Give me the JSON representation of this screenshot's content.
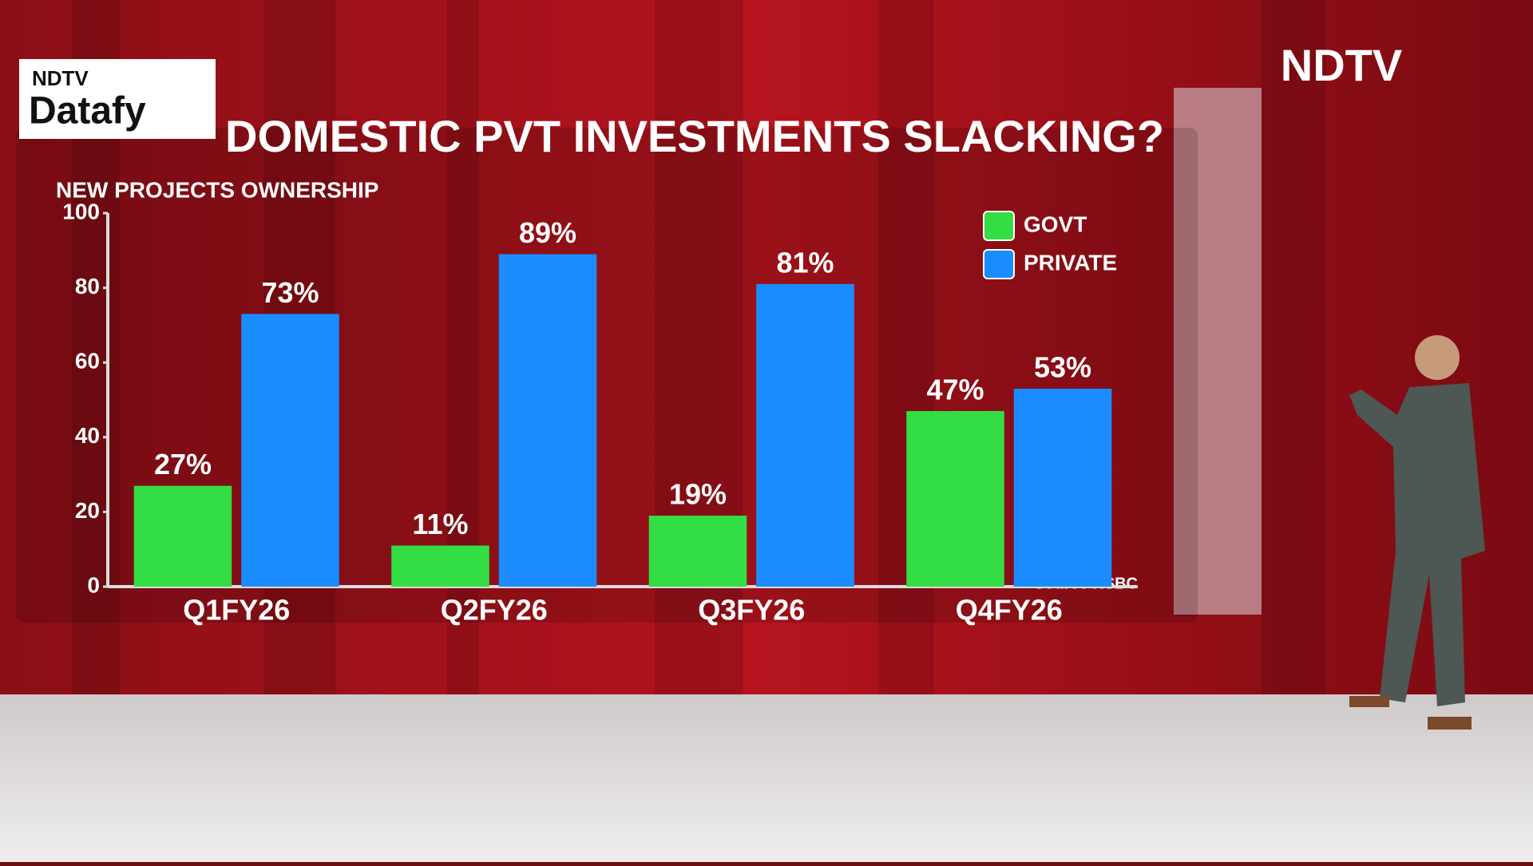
{
  "branding": {
    "logo_top": "NDTV",
    "logo_bottom": "Datafy",
    "channel": "NDTV"
  },
  "chart_data": {
    "type": "bar",
    "title": "DOMESTIC PVT INVESTMENTS SLACKING?",
    "y_label": "NEW PROJECTS OWNERSHIP",
    "source": "*Source HSBC",
    "categories": [
      "Q1FY26",
      "Q2FY26",
      "Q3FY26",
      "Q4FY26"
    ],
    "series": [
      {
        "name": "GOVT",
        "color": "#33dd44",
        "values": [
          27,
          11,
          19,
          47
        ],
        "value_labels": [
          "27%",
          "11%",
          "19%",
          "47%"
        ]
      },
      {
        "name": "PRIVATE",
        "color": "#1a8cff",
        "values": [
          73,
          89,
          81,
          53
        ],
        "value_labels": [
          "73%",
          "89%",
          "81%",
          "53%"
        ]
      }
    ],
    "ylim": [
      0,
      100
    ],
    "yticks": [
      0,
      20,
      40,
      60,
      80,
      100
    ],
    "grid": false,
    "legend": "top-right"
  }
}
